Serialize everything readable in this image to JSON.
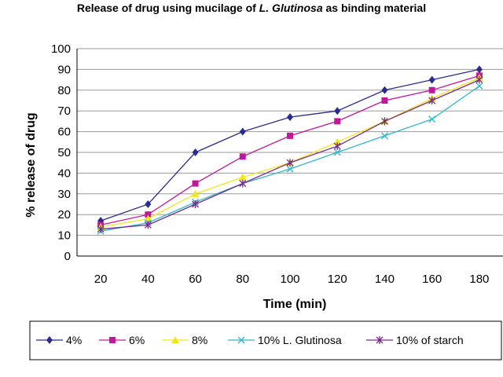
{
  "chart_data": {
    "type": "line",
    "title_prefix": "Release of drug using mucilage of ",
    "title_italic": "L. Glutinosa",
    "title_suffix": "  as binding material",
    "xlabel": "Time (min)",
    "ylabel": "% release of drug",
    "x": [
      20,
      40,
      60,
      80,
      100,
      120,
      140,
      160,
      180
    ],
    "ylim": [
      0,
      100
    ],
    "yticks": [
      0,
      10,
      20,
      30,
      40,
      50,
      60,
      70,
      80,
      90,
      100
    ],
    "grid": "horizontal",
    "legend_position": "bottom",
    "series": [
      {
        "name": "4%",
        "color": "#2b2b8f",
        "marker": "diamond",
        "values": [
          17,
          25,
          50,
          60,
          67,
          70,
          80,
          85,
          90
        ]
      },
      {
        "name": "6%",
        "color": "#c0179b",
        "marker": "square",
        "values": [
          15,
          20,
          35,
          48,
          58,
          65,
          75,
          80,
          87
        ]
      },
      {
        "name": "8%",
        "color": "#f0e81a",
        "marker": "triangle",
        "values": [
          14,
          18,
          30,
          38,
          45,
          55,
          65,
          76,
          86
        ]
      },
      {
        "name": "10% L. Glutinosa",
        "color": "#2fb8c8",
        "marker": "x",
        "values": [
          12,
          16,
          26,
          35,
          42,
          50,
          58,
          66,
          82
        ]
      },
      {
        "name": "10% of starch",
        "color": "#7a2a8a",
        "marker": "asterisk",
        "values": [
          13,
          15,
          25,
          35,
          45,
          53,
          65,
          75,
          85
        ]
      }
    ]
  }
}
